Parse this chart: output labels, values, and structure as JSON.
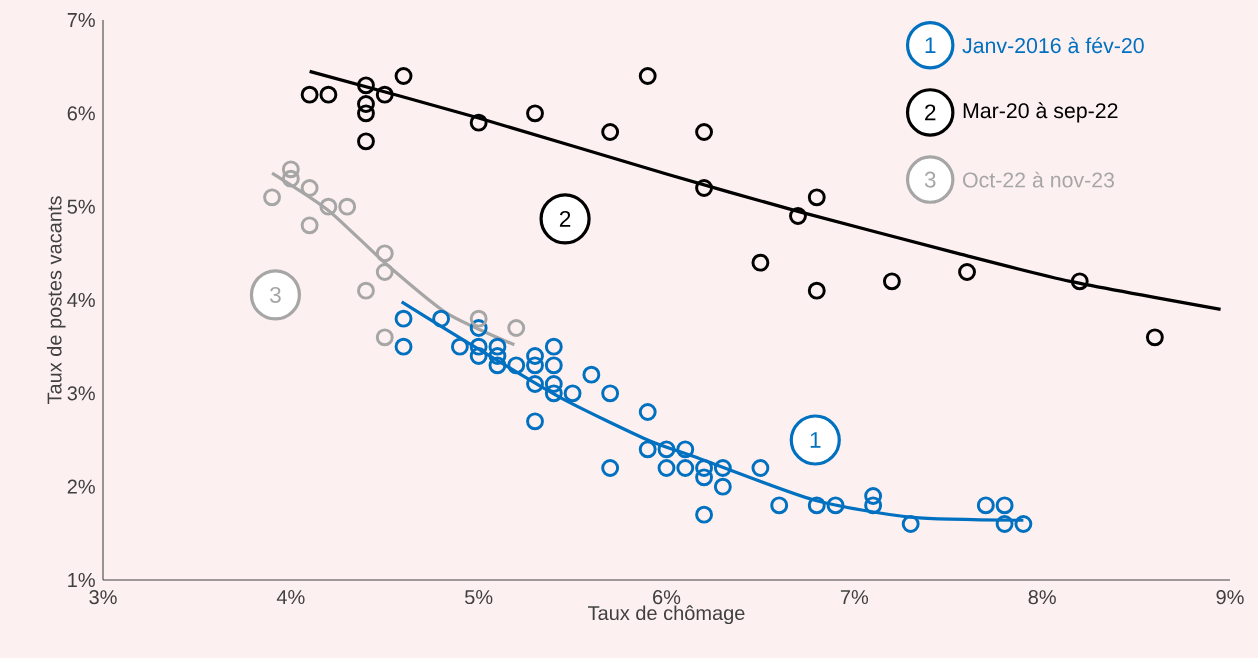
{
  "chart_data": {
    "type": "scatter",
    "xlabel": "Taux de chômage",
    "ylabel": "Taux de postes vacants",
    "xlim": [
      3,
      9
    ],
    "ylim": [
      1,
      7
    ],
    "xticks": [
      {
        "value": 3,
        "label": "3%"
      },
      {
        "value": 4,
        "label": "4%"
      },
      {
        "value": 5,
        "label": "5%"
      },
      {
        "value": 6,
        "label": "6%"
      },
      {
        "value": 7,
        "label": "7%"
      },
      {
        "value": 8,
        "label": "8%"
      },
      {
        "value": 9,
        "label": "9%"
      }
    ],
    "yticks": [
      {
        "value": 1,
        "label": "1%"
      },
      {
        "value": 2,
        "label": "2%"
      },
      {
        "value": 3,
        "label": "3%"
      },
      {
        "value": 4,
        "label": "4%"
      },
      {
        "value": 5,
        "label": "5%"
      },
      {
        "value": 6,
        "label": "6%"
      },
      {
        "value": 7,
        "label": "7%"
      }
    ],
    "legend": "top right",
    "series": [
      {
        "name": "Janv-2016 à fév-20",
        "color": "#0070c0",
        "marker": "circle",
        "x": [
          4.6,
          4.6,
          4.8,
          4.9,
          5.0,
          5.0,
          5.0,
          5.1,
          5.1,
          5.1,
          5.2,
          5.3,
          5.3,
          5.3,
          5.4,
          5.4,
          5.4,
          5.4,
          5.5,
          5.6,
          5.7,
          5.3,
          5.9,
          5.9,
          6.0,
          6.0,
          6.1,
          6.1,
          6.2,
          6.2,
          6.3,
          6.3,
          6.2,
          5.7,
          6.5,
          6.6,
          6.8,
          6.9,
          7.1,
          7.1,
          7.3,
          7.7,
          7.8,
          7.8,
          7.9
        ],
        "values": [
          3.8,
          3.5,
          3.8,
          3.5,
          3.7,
          3.5,
          3.4,
          3.5,
          3.4,
          3.3,
          3.3,
          3.4,
          3.3,
          3.1,
          3.5,
          3.3,
          3.1,
          3.0,
          3.0,
          3.2,
          3.0,
          2.7,
          2.8,
          2.4,
          2.4,
          2.2,
          2.4,
          2.2,
          2.2,
          2.1,
          2.2,
          2.0,
          1.7,
          2.2,
          2.2,
          1.8,
          1.8,
          1.8,
          1.9,
          1.8,
          1.6,
          1.8,
          1.8,
          1.6,
          1.6
        ]
      },
      {
        "name": "Mar-20 à sep-22",
        "color": "#000000",
        "marker": "circle",
        "x": [
          4.1,
          4.2,
          4.4,
          4.4,
          4.4,
          4.4,
          4.5,
          4.6,
          5.0,
          5.3,
          5.7,
          5.9,
          6.2,
          6.2,
          6.7,
          6.8,
          6.5,
          6.8,
          7.2,
          7.6,
          8.2,
          8.6
        ],
        "values": [
          6.2,
          6.2,
          6.3,
          6.1,
          6.0,
          5.7,
          6.2,
          6.4,
          5.9,
          6.0,
          5.8,
          6.4,
          5.8,
          5.2,
          4.9,
          5.1,
          4.4,
          4.1,
          4.2,
          4.3,
          4.2,
          3.6
        ]
      },
      {
        "name": "Oct-22 à nov-23",
        "color": "#a6a6a6",
        "marker": "circle",
        "x": [
          4.0,
          4.0,
          4.1,
          3.9,
          4.2,
          4.3,
          4.1,
          4.5,
          4.5,
          4.4,
          4.5,
          5.0,
          5.2
        ],
        "values": [
          5.4,
          5.3,
          5.2,
          5.1,
          5.0,
          5.0,
          4.8,
          4.5,
          4.3,
          4.1,
          3.6,
          3.8,
          3.7
        ]
      },
      {
        "type": "line",
        "marker": "none",
        "color": "#0070c0",
        "x": [
          4.59,
          4.92,
          5.43,
          5.9,
          6.15,
          6.78,
          7.31,
          7.9
        ],
        "values": [
          3.98,
          3.57,
          2.96,
          2.5,
          2.32,
          1.86,
          1.67,
          1.64
        ]
      },
      {
        "type": "line",
        "marker": "none",
        "color": "#000000",
        "x": [
          4.1,
          5.0,
          6.0,
          6.7,
          7.55,
          8.15,
          8.95
        ],
        "values": [
          6.45,
          5.95,
          5.35,
          4.95,
          4.5,
          4.2,
          3.9
        ]
      },
      {
        "type": "line",
        "marker": "none",
        "color": "#a6a6a6",
        "x": [
          3.9,
          4.2,
          4.5,
          4.83,
          5.19
        ],
        "values": [
          5.36,
          4.96,
          4.4,
          3.86,
          3.52
        ]
      }
    ],
    "annotations": [
      "1",
      "2",
      "3"
    ]
  }
}
